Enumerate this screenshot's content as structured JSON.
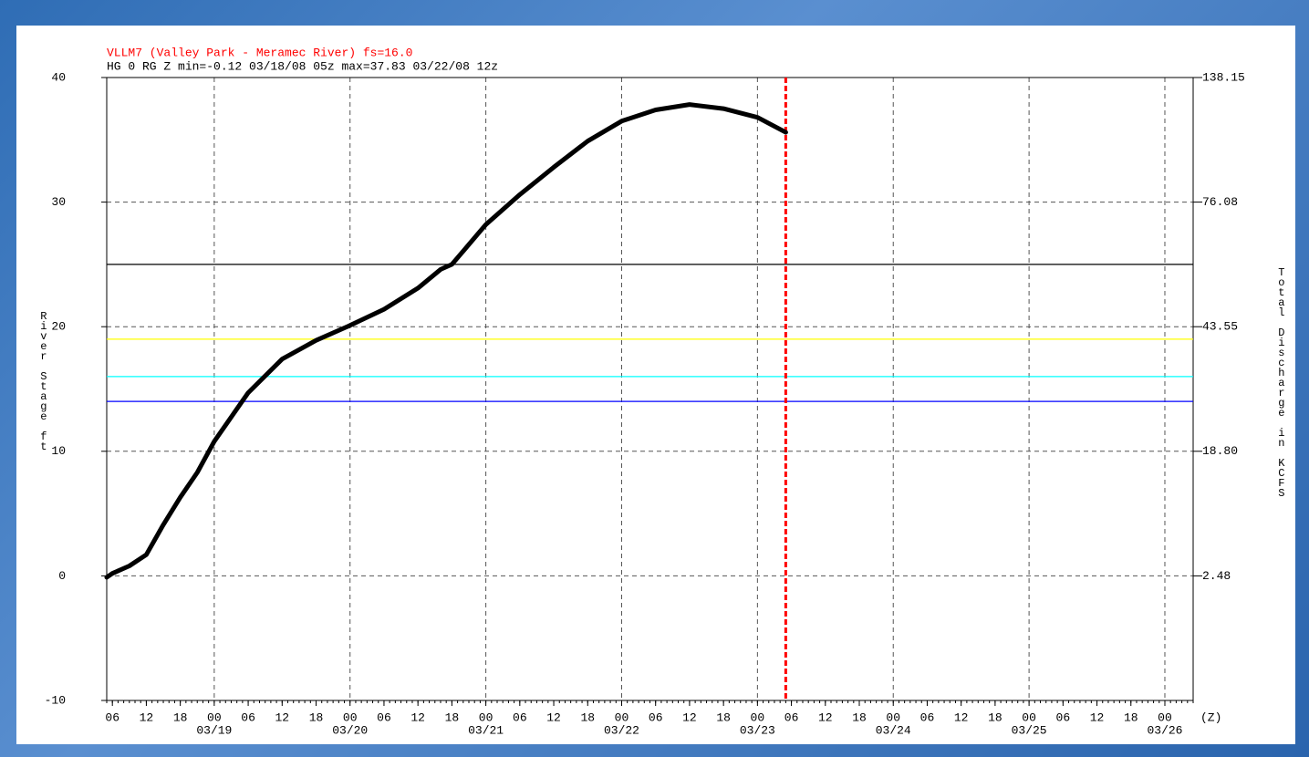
{
  "chart_data": {
    "type": "line",
    "title": "VLLM7 (Valley Park - Meramec River) fs=16.0",
    "subtitle": "HG 0 RG Z min=-0.12 03/18/08 05z max=37.83 03/22/08 12z",
    "y_label": "River Stage ft",
    "y2_label": "Total Discharge in KCFS",
    "x_unit": "(Z)",
    "xlim": [
      "03/18 05",
      "03/26 05"
    ],
    "ylim": [
      -10,
      40
    ],
    "yticks": [
      -10,
      0,
      10,
      20,
      30,
      40
    ],
    "y2ticks": [
      2.48,
      {
        "value": 18.8,
        "label": "18.80"
      },
      43.55,
      76.08,
      138.15
    ],
    "xticks": [
      {
        "value": "03/18 06",
        "label": "06"
      },
      {
        "value": "03/18 12",
        "label": "12"
      },
      {
        "value": "03/18 18",
        "label": "18"
      },
      {
        "value": "03/19 00",
        "label": "00"
      },
      {
        "value": "03/19 06",
        "label": "06"
      },
      {
        "value": "03/19 12",
        "label": "12"
      },
      {
        "value": "03/19 18",
        "label": "18"
      },
      {
        "value": "03/20 00",
        "label": "00"
      },
      {
        "value": "03/20 06",
        "label": "06"
      },
      {
        "value": "03/20 12",
        "label": "12"
      },
      {
        "value": "03/20 18",
        "label": "18"
      },
      {
        "value": "03/21 00",
        "label": "00"
      },
      {
        "value": "03/21 06",
        "label": "06"
      },
      {
        "value": "03/21 12",
        "label": "12"
      },
      {
        "value": "03/21 18",
        "label": "18"
      },
      {
        "value": "03/22 00",
        "label": "00"
      },
      {
        "value": "03/22 06",
        "label": "06"
      },
      {
        "value": "03/22 12",
        "label": "12"
      },
      {
        "value": "03/22 18",
        "label": "18"
      },
      {
        "value": "03/23 00",
        "label": "00"
      },
      {
        "value": "03/23 06",
        "label": "06"
      },
      {
        "value": "03/23 12",
        "label": "12"
      },
      {
        "value": "03/23 18",
        "label": "18"
      },
      {
        "value": "03/24 00",
        "label": "00"
      },
      {
        "value": "03/24 06",
        "label": "06"
      },
      {
        "value": "03/24 12",
        "label": "12"
      },
      {
        "value": "03/24 18",
        "label": "18"
      },
      {
        "value": "03/25 00",
        "label": "00"
      },
      {
        "value": "03/25 06",
        "label": "06"
      },
      {
        "value": "03/25 12",
        "label": "12"
      },
      {
        "value": "03/25 18",
        "label": "18"
      },
      {
        "value": "03/26 00",
        "label": "00"
      }
    ],
    "xdate_labels": [
      {
        "value": "03/19 00",
        "label": "03/19"
      },
      {
        "value": "03/20 00",
        "label": "03/20"
      },
      {
        "value": "03/21 00",
        "label": "03/21"
      },
      {
        "value": "03/22 00",
        "label": "03/22"
      },
      {
        "value": "03/23 00",
        "label": "03/23"
      },
      {
        "value": "03/24 00",
        "label": "03/24"
      },
      {
        "value": "03/25 00",
        "label": "03/25"
      },
      {
        "value": "03/26 00",
        "label": "03/26"
      }
    ],
    "grid": true,
    "thresholds": [
      {
        "value": 25,
        "color": "#000000"
      },
      {
        "value": 19,
        "color": "#ffff00"
      },
      {
        "value": 16,
        "color": "#00ffff"
      },
      {
        "value": 14,
        "color": "#0000ff"
      }
    ],
    "now_line": {
      "x": "03/23 05",
      "color": "#ff0000"
    },
    "series": [
      {
        "color": "#000000",
        "x": [
          "03/18 05",
          "03/18 06",
          "03/18 09",
          "03/18 12",
          "03/18 15",
          "03/18 18",
          "03/18 21",
          "03/19 00",
          "03/19 06",
          "03/19 12",
          "03/19 18",
          "03/20 00",
          "03/20 06",
          "03/20 12",
          "03/20 16",
          "03/20 18",
          "03/21 00",
          "03/21 06",
          "03/21 12",
          "03/21 18",
          "03/22 00",
          "03/22 06",
          "03/22 12",
          "03/22 18",
          "03/23 00",
          "03/23 05"
        ],
        "values": [
          -0.12,
          0.2,
          0.8,
          1.7,
          4.1,
          6.3,
          8.3,
          10.8,
          14.7,
          17.4,
          18.9,
          20.1,
          21.4,
          23.1,
          24.6,
          25.0,
          28.2,
          30.6,
          32.8,
          34.9,
          36.5,
          37.4,
          37.83,
          37.5,
          36.8,
          35.6
        ]
      }
    ]
  }
}
